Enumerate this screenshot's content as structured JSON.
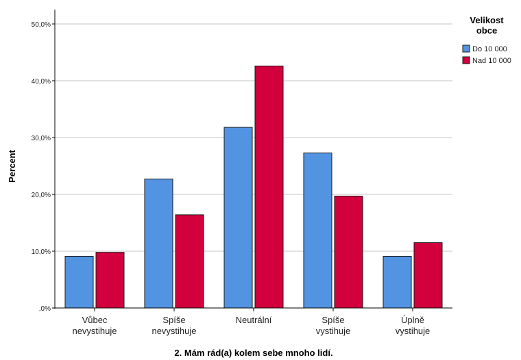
{
  "chart_data": {
    "type": "bar",
    "title": "",
    "xlabel": "2. Mám rád(a) kolem sebe mnoho lidí.",
    "ylabel": "Percent",
    "ylim": [
      0,
      50
    ],
    "yticks": [
      0,
      10,
      20,
      30,
      40,
      50
    ],
    "ytick_labels": [
      ",0%",
      "10,0%",
      "20,0%",
      "30,0%",
      "40,0%",
      "50,0%"
    ],
    "categories": [
      [
        "Vůbec",
        "nevystihuje"
      ],
      [
        "Spíše",
        "nevystihuje"
      ],
      [
        "Neutrální"
      ],
      [
        "Spíše",
        "vystihuje"
      ],
      [
        "Úplně",
        "vystihuje"
      ]
    ],
    "legend": {
      "title": [
        "Velikost",
        "obce"
      ],
      "placement": "right"
    },
    "grid": true,
    "series": [
      {
        "name": "Do 10 000",
        "color": "#5294e2",
        "values": [
          9.1,
          22.7,
          31.8,
          27.3,
          9.1
        ]
      },
      {
        "name": "Nad 10 000",
        "color": "#d2003c",
        "values": [
          9.8,
          16.4,
          42.6,
          19.7,
          11.5
        ]
      }
    ]
  }
}
